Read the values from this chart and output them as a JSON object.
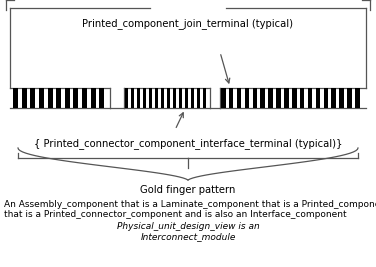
{
  "bg_color": "#ffffff",
  "title_label": "Printed_component_join_terminal (typical)",
  "interface_label": "{ Printed_connector_component_interface_terminal (typical)}",
  "gold_finger_label": "Gold finger pattern",
  "assembly_label_line1": "An Assembly_component that is a Laminate_component that is a Printed_component",
  "assembly_label_line2": "that is a Printed_connector_component and is also an Interface_component",
  "physical_label_line1": "Physical_unit_design_view is an",
  "physical_label_line2": "Interconnect_module",
  "line_color": "#555555",
  "finger_color": "#000000",
  "font_size_label": 7.2,
  "font_size_small": 6.5
}
